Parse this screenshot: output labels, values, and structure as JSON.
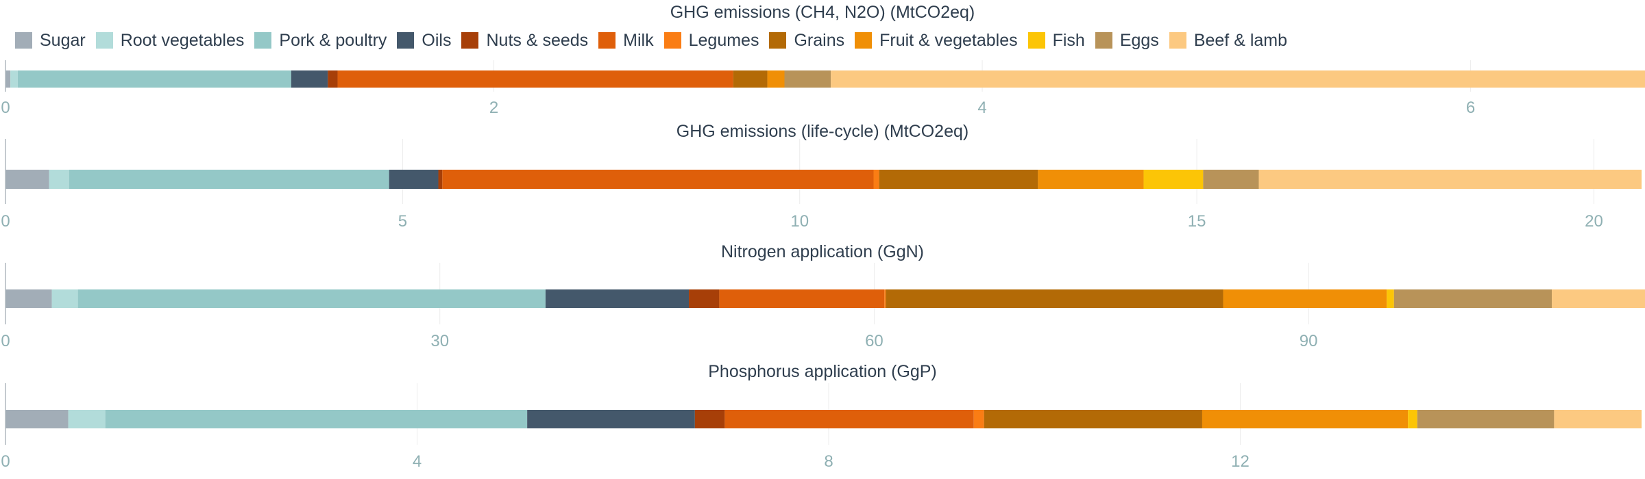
{
  "legend": [
    {
      "name": "Sugar",
      "color": "#a2adb7"
    },
    {
      "name": "Root vegetables",
      "color": "#b2dcda"
    },
    {
      "name": "Pork & poultry",
      "color": "#94c8c7"
    },
    {
      "name": "Oils",
      "color": "#44586b"
    },
    {
      "name": "Nuts & seeds",
      "color": "#a73f08"
    },
    {
      "name": "Milk",
      "color": "#df5f0a"
    },
    {
      "name": "Legumes",
      "color": "#fa7d14"
    },
    {
      "name": "Grains",
      "color": "#b36a06"
    },
    {
      "name": "Fruit & vegetables",
      "color": "#f08f06"
    },
    {
      "name": "Fish",
      "color": "#fcc506"
    },
    {
      "name": "Eggs",
      "color": "#b89359"
    },
    {
      "name": "Beef & lamb",
      "color": "#fcc981"
    }
  ],
  "chart_data": [
    {
      "type": "bar",
      "orientation": "horizontal-stacked",
      "title": "GHG emissions (CH4, N2O) (MtCO2eq)",
      "xlim": [
        0,
        6.7
      ],
      "ticks": [
        0,
        2,
        4,
        6
      ],
      "grid": true,
      "series": [
        {
          "name": "Sugar",
          "values": [
            0.02
          ]
        },
        {
          "name": "Root vegetables",
          "values": [
            0.03
          ]
        },
        {
          "name": "Pork & poultry",
          "values": [
            1.12
          ]
        },
        {
          "name": "Oils",
          "values": [
            0.15
          ]
        },
        {
          "name": "Nuts & seeds",
          "values": [
            0.04
          ]
        },
        {
          "name": "Milk",
          "values": [
            1.62
          ]
        },
        {
          "name": "Legumes",
          "values": [
            0.0
          ]
        },
        {
          "name": "Grains",
          "values": [
            0.14
          ]
        },
        {
          "name": "Fruit & vegetables",
          "values": [
            0.07
          ]
        },
        {
          "name": "Fish",
          "values": [
            0.0
          ]
        },
        {
          "name": "Eggs",
          "values": [
            0.19
          ]
        },
        {
          "name": "Beef & lamb",
          "values": [
            3.34
          ]
        }
      ]
    },
    {
      "type": "bar",
      "orientation": "horizontal-stacked",
      "title": "GHG emissions (life-cycle) (MtCO2eq)",
      "xlim": [
        0,
        20.6
      ],
      "ticks": [
        0,
        5,
        10,
        15,
        20
      ],
      "grid": true,
      "series": [
        {
          "name": "Sugar",
          "values": [
            0.55
          ]
        },
        {
          "name": "Root vegetables",
          "values": [
            0.25
          ]
        },
        {
          "name": "Pork & poultry",
          "values": [
            4.03
          ]
        },
        {
          "name": "Oils",
          "values": [
            0.62
          ]
        },
        {
          "name": "Nuts & seeds",
          "values": [
            0.05
          ]
        },
        {
          "name": "Milk",
          "values": [
            5.43
          ]
        },
        {
          "name": "Legumes",
          "values": [
            0.07
          ]
        },
        {
          "name": "Grains",
          "values": [
            2.0
          ]
        },
        {
          "name": "Fruit & vegetables",
          "values": [
            1.33
          ]
        },
        {
          "name": "Fish",
          "values": [
            0.75
          ]
        },
        {
          "name": "Eggs",
          "values": [
            0.7
          ]
        },
        {
          "name": "Beef & lamb",
          "values": [
            4.82
          ]
        }
      ]
    },
    {
      "type": "bar",
      "orientation": "horizontal-stacked",
      "title": "Nitrogen application (GgN)",
      "xlim": [
        0,
        113
      ],
      "ticks": [
        0,
        30,
        60,
        90
      ],
      "grid": true,
      "series": [
        {
          "name": "Sugar",
          "values": [
            3.2
          ]
        },
        {
          "name": "Root vegetables",
          "values": [
            1.8
          ]
        },
        {
          "name": "Pork & poultry",
          "values": [
            32.3
          ]
        },
        {
          "name": "Oils",
          "values": [
            9.9
          ]
        },
        {
          "name": "Nuts & seeds",
          "values": [
            2.1
          ]
        },
        {
          "name": "Milk",
          "values": [
            11.4
          ]
        },
        {
          "name": "Legumes",
          "values": [
            0.1
          ]
        },
        {
          "name": "Grains",
          "values": [
            23.3
          ]
        },
        {
          "name": "Fruit & vegetables",
          "values": [
            11.3
          ]
        },
        {
          "name": "Fish",
          "values": [
            0.5
          ]
        },
        {
          "name": "Eggs",
          "values": [
            10.9
          ]
        },
        {
          "name": "Beef & lamb",
          "values": [
            6.5
          ]
        }
      ]
    },
    {
      "type": "bar",
      "orientation": "horizontal-stacked",
      "title": "Phosphorus application (GgP)",
      "xlim": [
        0,
        15.9
      ],
      "ticks": [
        0,
        4,
        8,
        12
      ],
      "grid": true,
      "series": [
        {
          "name": "Sugar",
          "values": [
            0.61
          ]
        },
        {
          "name": "Root vegetables",
          "values": [
            0.36
          ]
        },
        {
          "name": "Pork & poultry",
          "values": [
            4.1
          ]
        },
        {
          "name": "Oils",
          "values": [
            1.63
          ]
        },
        {
          "name": "Nuts & seeds",
          "values": [
            0.29
          ]
        },
        {
          "name": "Milk",
          "values": [
            2.42
          ]
        },
        {
          "name": "Legumes",
          "values": [
            0.1
          ]
        },
        {
          "name": "Grains",
          "values": [
            2.12
          ]
        },
        {
          "name": "Fruit & vegetables",
          "values": [
            2.0
          ]
        },
        {
          "name": "Fish",
          "values": [
            0.09
          ]
        },
        {
          "name": "Eggs",
          "values": [
            1.33
          ]
        },
        {
          "name": "Beef & lamb",
          "values": [
            0.85
          ]
        }
      ]
    }
  ]
}
